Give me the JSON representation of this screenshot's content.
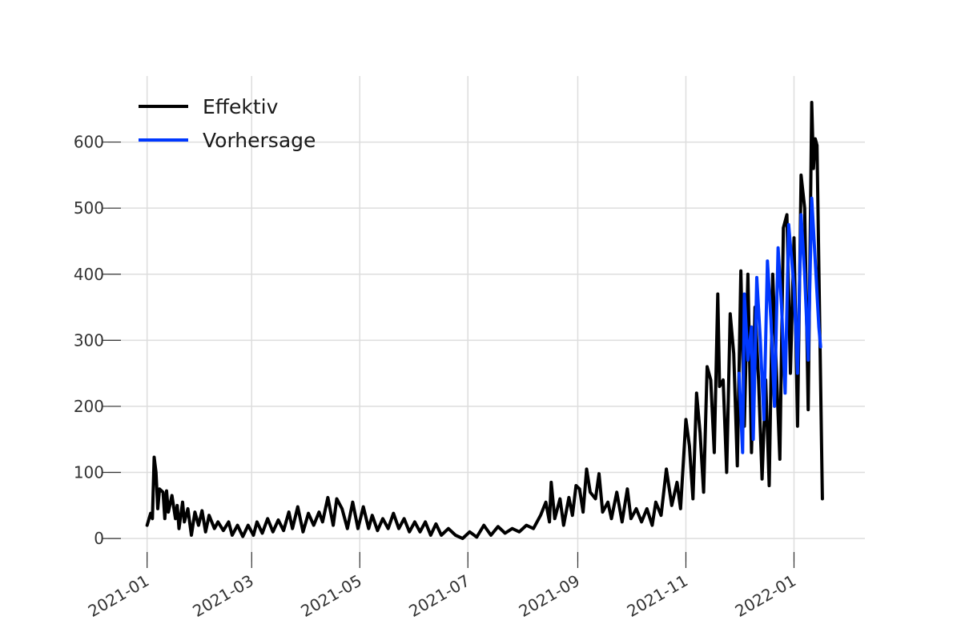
{
  "chart_data": {
    "type": "line",
    "title": "",
    "xlabel": "",
    "ylabel": "",
    "x_axis": "date",
    "xlim": [
      "2020-12-10",
      "2022-02-10"
    ],
    "ylim": [
      -35,
      700
    ],
    "x_ticks": [
      "2021-01-01",
      "2021-03-01",
      "2021-05-01",
      "2021-07-01",
      "2021-09-01",
      "2021-11-01",
      "2022-01-01"
    ],
    "x_tick_labels": [
      "2021-01",
      "2021-03",
      "2021-05",
      "2021-07",
      "2021-09",
      "2021-11",
      "2022-01"
    ],
    "y_ticks": [
      0,
      100,
      200,
      300,
      400,
      500,
      600
    ],
    "y_tick_labels": [
      "0",
      "100",
      "200",
      "300",
      "400",
      "500",
      "600"
    ],
    "grid": true,
    "legend_position": "top-left",
    "series": [
      {
        "name": "Effektiv",
        "color": "#000000",
        "points": [
          [
            "2021-01-01",
            20
          ],
          [
            "2021-01-03",
            38
          ],
          [
            "2021-01-04",
            30
          ],
          [
            "2021-01-05",
            123
          ],
          [
            "2021-01-06",
            100
          ],
          [
            "2021-01-07",
            45
          ],
          [
            "2021-01-08",
            75
          ],
          [
            "2021-01-10",
            70
          ],
          [
            "2021-01-11",
            30
          ],
          [
            "2021-01-12",
            72
          ],
          [
            "2021-01-13",
            40
          ],
          [
            "2021-01-15",
            65
          ],
          [
            "2021-01-17",
            30
          ],
          [
            "2021-01-18",
            50
          ],
          [
            "2021-01-19",
            15
          ],
          [
            "2021-01-21",
            55
          ],
          [
            "2021-01-22",
            25
          ],
          [
            "2021-01-24",
            45
          ],
          [
            "2021-01-26",
            5
          ],
          [
            "2021-01-28",
            40
          ],
          [
            "2021-01-30",
            20
          ],
          [
            "2021-02-01",
            42
          ],
          [
            "2021-02-03",
            10
          ],
          [
            "2021-02-05",
            35
          ],
          [
            "2021-02-08",
            15
          ],
          [
            "2021-02-10",
            25
          ],
          [
            "2021-02-13",
            12
          ],
          [
            "2021-02-16",
            25
          ],
          [
            "2021-02-18",
            5
          ],
          [
            "2021-02-21",
            20
          ],
          [
            "2021-02-24",
            3
          ],
          [
            "2021-02-27",
            20
          ],
          [
            "2021-03-02",
            5
          ],
          [
            "2021-03-04",
            25
          ],
          [
            "2021-03-07",
            8
          ],
          [
            "2021-03-10",
            30
          ],
          [
            "2021-03-13",
            10
          ],
          [
            "2021-03-16",
            28
          ],
          [
            "2021-03-19",
            12
          ],
          [
            "2021-03-22",
            40
          ],
          [
            "2021-03-24",
            15
          ],
          [
            "2021-03-27",
            48
          ],
          [
            "2021-03-30",
            10
          ],
          [
            "2021-04-02",
            38
          ],
          [
            "2021-04-05",
            20
          ],
          [
            "2021-04-08",
            40
          ],
          [
            "2021-04-10",
            25
          ],
          [
            "2021-04-13",
            62
          ],
          [
            "2021-04-16",
            20
          ],
          [
            "2021-04-18",
            60
          ],
          [
            "2021-04-21",
            45
          ],
          [
            "2021-04-24",
            15
          ],
          [
            "2021-04-27",
            55
          ],
          [
            "2021-04-30",
            15
          ],
          [
            "2021-05-03",
            48
          ],
          [
            "2021-05-06",
            15
          ],
          [
            "2021-05-08",
            35
          ],
          [
            "2021-05-11",
            12
          ],
          [
            "2021-05-14",
            30
          ],
          [
            "2021-05-17",
            15
          ],
          [
            "2021-05-20",
            38
          ],
          [
            "2021-05-23",
            15
          ],
          [
            "2021-05-26",
            30
          ],
          [
            "2021-05-29",
            10
          ],
          [
            "2021-06-01",
            25
          ],
          [
            "2021-06-04",
            10
          ],
          [
            "2021-06-07",
            25
          ],
          [
            "2021-06-10",
            5
          ],
          [
            "2021-06-13",
            22
          ],
          [
            "2021-06-16",
            5
          ],
          [
            "2021-06-20",
            15
          ],
          [
            "2021-06-24",
            5
          ],
          [
            "2021-06-28",
            0
          ],
          [
            "2021-07-02",
            10
          ],
          [
            "2021-07-06",
            2
          ],
          [
            "2021-07-10",
            20
          ],
          [
            "2021-07-14",
            5
          ],
          [
            "2021-07-18",
            18
          ],
          [
            "2021-07-22",
            8
          ],
          [
            "2021-07-26",
            15
          ],
          [
            "2021-07-30",
            10
          ],
          [
            "2021-08-03",
            20
          ],
          [
            "2021-08-07",
            15
          ],
          [
            "2021-08-11",
            35
          ],
          [
            "2021-08-14",
            55
          ],
          [
            "2021-08-16",
            25
          ],
          [
            "2021-08-17",
            85
          ],
          [
            "2021-08-19",
            30
          ],
          [
            "2021-08-22",
            60
          ],
          [
            "2021-08-24",
            20
          ],
          [
            "2021-08-27",
            62
          ],
          [
            "2021-08-29",
            35
          ],
          [
            "2021-08-31",
            80
          ],
          [
            "2021-09-02",
            75
          ],
          [
            "2021-09-04",
            40
          ],
          [
            "2021-09-06",
            105
          ],
          [
            "2021-09-08",
            70
          ],
          [
            "2021-09-11",
            60
          ],
          [
            "2021-09-13",
            98
          ],
          [
            "2021-09-15",
            40
          ],
          [
            "2021-09-18",
            55
          ],
          [
            "2021-09-20",
            30
          ],
          [
            "2021-09-23",
            70
          ],
          [
            "2021-09-26",
            25
          ],
          [
            "2021-09-29",
            75
          ],
          [
            "2021-10-01",
            30
          ],
          [
            "2021-10-04",
            45
          ],
          [
            "2021-10-07",
            25
          ],
          [
            "2021-10-10",
            45
          ],
          [
            "2021-10-13",
            20
          ],
          [
            "2021-10-15",
            55
          ],
          [
            "2021-10-18",
            35
          ],
          [
            "2021-10-21",
            105
          ],
          [
            "2021-10-24",
            50
          ],
          [
            "2021-10-27",
            85
          ],
          [
            "2021-10-29",
            45
          ],
          [
            "2021-11-01",
            180
          ],
          [
            "2021-11-03",
            140
          ],
          [
            "2021-11-05",
            60
          ],
          [
            "2021-11-07",
            220
          ],
          [
            "2021-11-09",
            160
          ],
          [
            "2021-11-11",
            70
          ],
          [
            "2021-11-13",
            260
          ],
          [
            "2021-11-15",
            240
          ],
          [
            "2021-11-17",
            130
          ],
          [
            "2021-11-19",
            370
          ],
          [
            "2021-11-20",
            230
          ],
          [
            "2021-11-22",
            240
          ],
          [
            "2021-11-24",
            100
          ],
          [
            "2021-11-26",
            340
          ],
          [
            "2021-11-28",
            280
          ],
          [
            "2021-11-30",
            110
          ],
          [
            "2021-12-02",
            405
          ],
          [
            "2021-12-04",
            170
          ],
          [
            "2021-12-06",
            400
          ],
          [
            "2021-12-08",
            130
          ],
          [
            "2021-12-10",
            350
          ],
          [
            "2021-12-12",
            240
          ],
          [
            "2021-12-14",
            90
          ],
          [
            "2021-12-16",
            240
          ],
          [
            "2021-12-18",
            80
          ],
          [
            "2021-12-20",
            400
          ],
          [
            "2021-12-22",
            260
          ],
          [
            "2021-12-24",
            120
          ],
          [
            "2021-12-26",
            470
          ],
          [
            "2021-12-28",
            490
          ],
          [
            "2021-12-30",
            250
          ],
          [
            "2022-01-01",
            455
          ],
          [
            "2022-01-03",
            170
          ],
          [
            "2022-01-05",
            550
          ],
          [
            "2022-01-07",
            500
          ],
          [
            "2022-01-09",
            195
          ],
          [
            "2022-01-11",
            660
          ],
          [
            "2022-01-12",
            560
          ],
          [
            "2022-01-13",
            605
          ],
          [
            "2022-01-14",
            595
          ],
          [
            "2022-01-17",
            60
          ]
        ]
      },
      {
        "name": "Vorhersage",
        "color": "#0038FF",
        "points": [
          [
            "2021-12-01",
            250
          ],
          [
            "2021-12-03",
            130
          ],
          [
            "2021-12-04",
            370
          ],
          [
            "2021-12-06",
            270
          ],
          [
            "2021-12-08",
            320
          ],
          [
            "2021-12-09",
            150
          ],
          [
            "2021-12-11",
            395
          ],
          [
            "2021-12-13",
            300
          ],
          [
            "2021-12-15",
            180
          ],
          [
            "2021-12-17",
            420
          ],
          [
            "2021-12-19",
            330
          ],
          [
            "2021-12-21",
            200
          ],
          [
            "2021-12-23",
            440
          ],
          [
            "2021-12-25",
            350
          ],
          [
            "2021-12-27",
            220
          ],
          [
            "2021-12-29",
            475
          ],
          [
            "2022-01-01",
            380
          ],
          [
            "2022-01-03",
            250
          ],
          [
            "2022-01-05",
            490
          ],
          [
            "2022-01-07",
            400
          ],
          [
            "2022-01-09",
            270
          ],
          [
            "2022-01-11",
            515
          ],
          [
            "2022-01-13",
            420
          ],
          [
            "2022-01-15",
            320
          ],
          [
            "2022-01-16",
            290
          ]
        ]
      }
    ]
  }
}
